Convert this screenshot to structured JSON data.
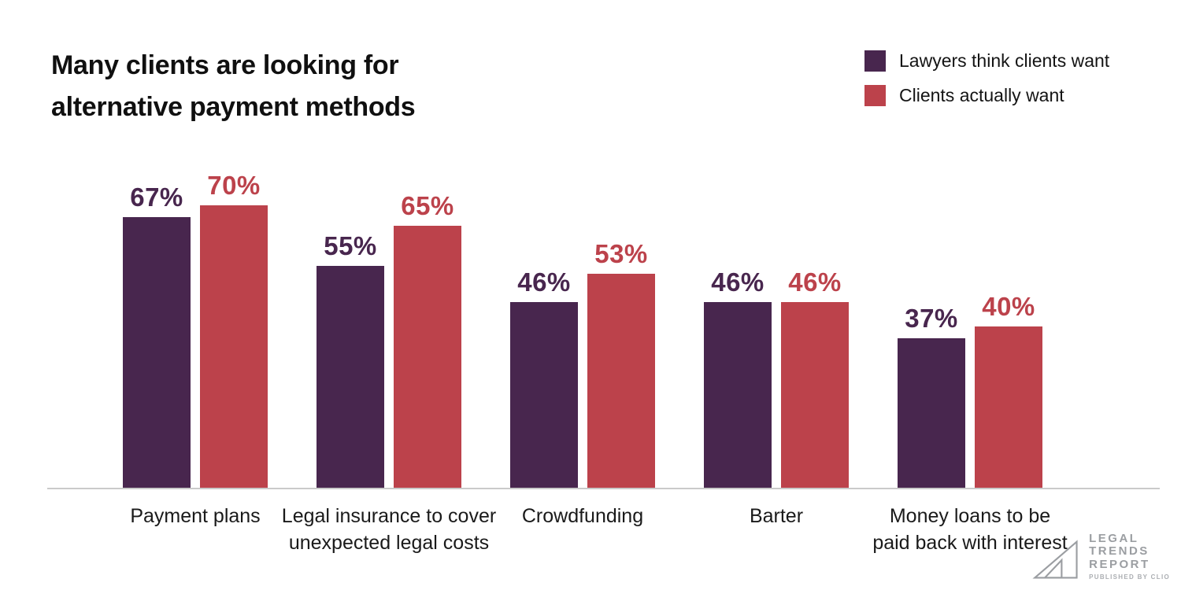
{
  "title": "Many clients are looking for\nalternative payment methods",
  "legend": {
    "items": [
      {
        "label": "Lawyers think clients want",
        "color": "#48264E"
      },
      {
        "label": "Clients actually want",
        "color": "#BC424B"
      }
    ]
  },
  "chart_data": {
    "type": "bar",
    "title": "Many clients are looking for alternative payment methods",
    "categories": [
      "Payment plans",
      "Legal insurance to cover\nunexpected legal costs",
      "Crowdfunding",
      "Barter",
      "Money loans to be\npaid back with interest"
    ],
    "series": [
      {
        "name": "Lawyers think clients want",
        "color": "#48264E",
        "values": [
          67,
          55,
          46,
          46,
          37
        ]
      },
      {
        "name": "Clients actually want",
        "color": "#BC424B",
        "values": [
          70,
          65,
          53,
          46,
          40
        ]
      }
    ],
    "value_suffix": "%",
    "ylim": [
      0,
      100
    ],
    "grid": false,
    "legend_position": "top-right",
    "axis_color": "#CACACA"
  },
  "logo": {
    "name": "LEGAL\nTRENDS\nREPORT",
    "tagline": "PUBLISHED BY CLIO"
  }
}
